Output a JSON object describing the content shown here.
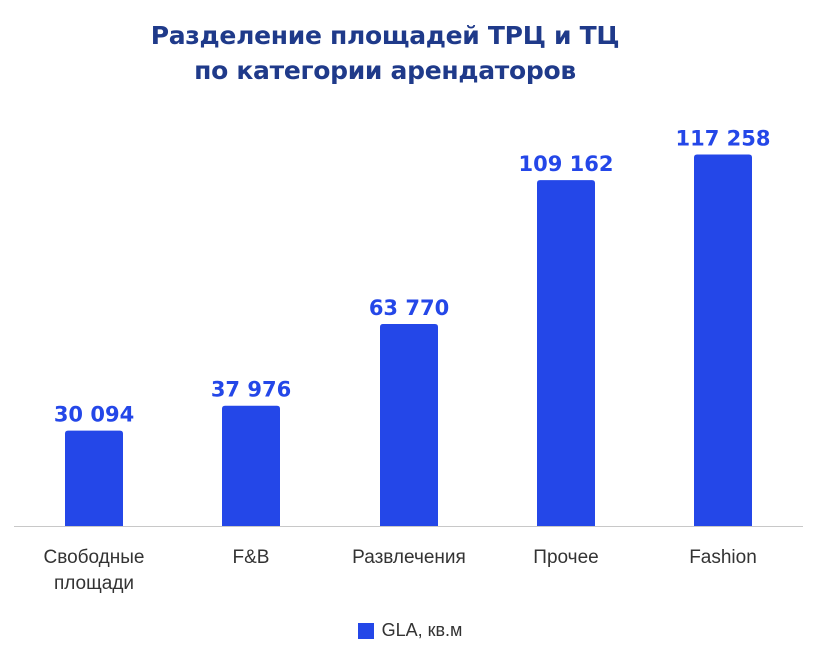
{
  "colors": {
    "bar": "#2447E8",
    "value_label": "#2447E8",
    "title": "#1F3A8A",
    "axis": "#C8C8C8",
    "category_text": "#333333"
  },
  "chart_data": {
    "type": "bar",
    "title_lines": [
      "Разделение площадей ТРЦ и ТЦ",
      "по категории арендаторов"
    ],
    "categories": [
      [
        "Свободные",
        "площади"
      ],
      [
        "F&B"
      ],
      [
        "Развлечения"
      ],
      [
        "Прочее"
      ],
      [
        "Fashion"
      ]
    ],
    "series": [
      {
        "name": "GLA, кв.м",
        "values": [
          30094,
          37976,
          63770,
          109162,
          117258
        ],
        "value_labels": [
          "30 094",
          "37 976",
          "63 770",
          "109 162",
          "117 258"
        ]
      }
    ],
    "ylim": [
      0,
      125000
    ],
    "grid": false,
    "legend_position": "bottom"
  }
}
